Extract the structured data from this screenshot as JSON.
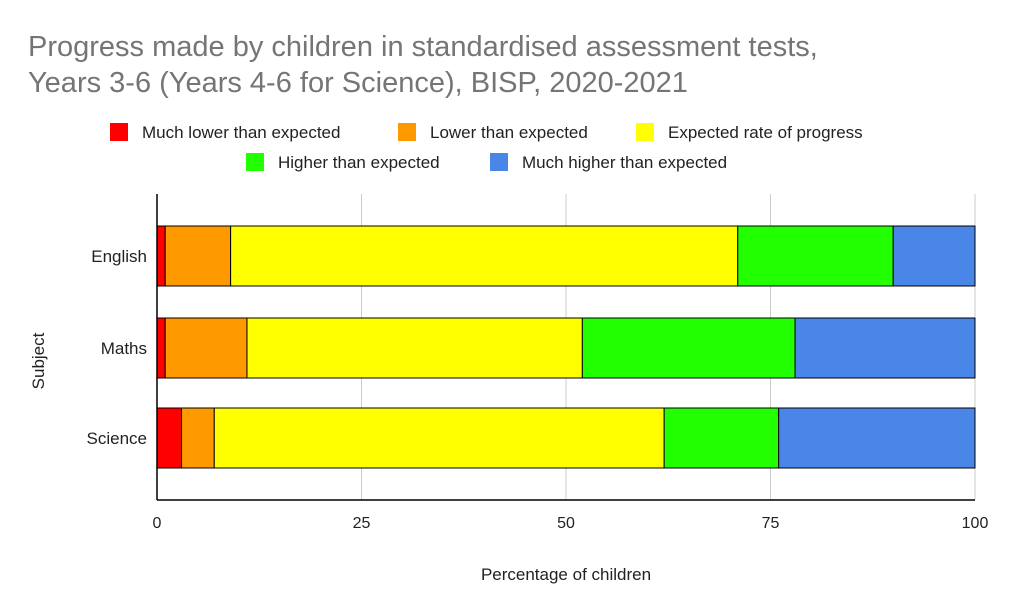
{
  "chart_data": {
    "type": "bar",
    "orientation": "horizontal",
    "stacked": true,
    "title": "Progress made by children in standardised assessment tests, Years 3-6 (Years 4-6 for Science), BISP, 2020-2021",
    "title_lines": [
      "Progress made by children in standardised assessment tests,",
      "Years 3-6 (Years 4-6 for Science), BISP, 2020-2021"
    ],
    "xlabel": "Percentage of children",
    "ylabel": "Subject",
    "xlim": [
      0,
      100
    ],
    "x_ticks": [
      "0",
      "25",
      "50",
      "75",
      "100"
    ],
    "categories": [
      "English",
      "Maths",
      "Science"
    ],
    "legend_position": "top",
    "grid": "vertical",
    "series": [
      {
        "name": "Much lower than expected",
        "color": "#ff0000",
        "values": [
          1,
          1,
          3
        ]
      },
      {
        "name": "Lower than expected",
        "color": "#ff9900",
        "values": [
          8,
          10,
          4
        ]
      },
      {
        "name": "Expected rate of progress",
        "color": "#ffff00",
        "values": [
          62,
          41,
          55
        ]
      },
      {
        "name": "Higher than expected",
        "color": "#22ff00",
        "values": [
          19,
          26,
          14
        ]
      },
      {
        "name": "Much higher than expected",
        "color": "#4a86e8",
        "values": [
          10,
          22,
          24
        ]
      }
    ]
  }
}
